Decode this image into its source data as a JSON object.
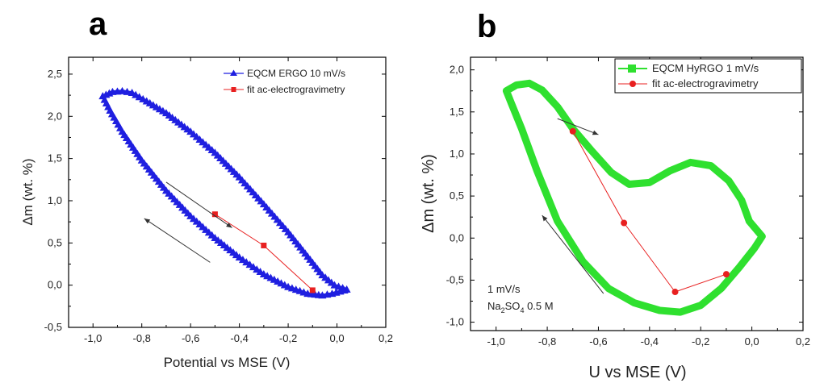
{
  "chart_data": [
    {
      "panel_label": "a",
      "type": "line",
      "xlabel": "Potential vs MSE (V)",
      "ylabel": "Δm (wt. %)",
      "xlim": [
        -1.1,
        0.2
      ],
      "ylim": [
        -0.5,
        2.7
      ],
      "xticks": [
        "-1,0",
        "-0,8",
        "-0,6",
        "-0,4",
        "-0,2",
        "0,0",
        "0,2"
      ],
      "yticks": [
        "-0,5",
        "0,0",
        "0,5",
        "1,0",
        "1,5",
        "2,0",
        "2,5"
      ],
      "legend_position": "top-right",
      "series": [
        {
          "name": "EQCM ERGO 10 mV/s",
          "color": "#1f1fe0",
          "marker": "triangle",
          "closed": true,
          "points": [
            [
              -0.96,
              2.24
            ],
            [
              -0.92,
              2.29
            ],
            [
              -0.88,
              2.3
            ],
            [
              -0.84,
              2.28
            ],
            [
              -0.78,
              2.18
            ],
            [
              -0.7,
              2.04
            ],
            [
              -0.6,
              1.82
            ],
            [
              -0.5,
              1.57
            ],
            [
              -0.4,
              1.28
            ],
            [
              -0.3,
              0.96
            ],
            [
              -0.2,
              0.63
            ],
            [
              -0.12,
              0.34
            ],
            [
              -0.06,
              0.12
            ],
            [
              -0.01,
              0.0
            ],
            [
              0.04,
              -0.05
            ],
            [
              0.03,
              -0.06
            ],
            [
              -0.02,
              -0.1
            ],
            [
              -0.06,
              -0.12
            ],
            [
              -0.12,
              -0.1
            ],
            [
              -0.2,
              -0.02
            ],
            [
              -0.3,
              0.13
            ],
            [
              -0.4,
              0.33
            ],
            [
              -0.5,
              0.56
            ],
            [
              -0.6,
              0.82
            ],
            [
              -0.7,
              1.12
            ],
            [
              -0.8,
              1.48
            ],
            [
              -0.88,
              1.82
            ],
            [
              -0.93,
              2.07
            ],
            [
              -0.96,
              2.24
            ]
          ]
        },
        {
          "name": "fit ac-electrogravimetry",
          "color": "#e82020",
          "marker": "square",
          "closed": false,
          "points": [
            [
              -0.5,
              0.84
            ],
            [
              -0.3,
              0.47
            ],
            [
              -0.1,
              -0.06
            ]
          ]
        }
      ],
      "arrows": [
        {
          "from": [
            -0.7,
            1.22
          ],
          "to": [
            -0.43,
            0.68
          ]
        },
        {
          "from": [
            -0.52,
            0.27
          ],
          "to": [
            -0.79,
            0.79
          ]
        }
      ],
      "annotations": []
    },
    {
      "panel_label": "b",
      "type": "line",
      "xlabel": "U vs MSE (V)",
      "ylabel": "Δm (wt. %)",
      "xlim": [
        -1.1,
        0.2
      ],
      "ylim": [
        -1.1,
        2.15
      ],
      "xticks": [
        "-1,0",
        "-0,8",
        "-0,6",
        "-0,4",
        "-0,2",
        "0,0",
        "0,2"
      ],
      "yticks": [
        "-1,0",
        "-0,5",
        "0,0",
        "0,5",
        "1,0",
        "1,5",
        "2,0"
      ],
      "legend_position": "top-right",
      "series": [
        {
          "name": "EQCM HyRGO 1 mV/s",
          "color": "#2fe02f",
          "marker": "square",
          "closed": true,
          "points": [
            [
              -0.96,
              1.75
            ],
            [
              -0.92,
              1.82
            ],
            [
              -0.87,
              1.84
            ],
            [
              -0.82,
              1.76
            ],
            [
              -0.76,
              1.56
            ],
            [
              -0.7,
              1.3
            ],
            [
              -0.63,
              1.05
            ],
            [
              -0.55,
              0.78
            ],
            [
              -0.48,
              0.64
            ],
            [
              -0.4,
              0.66
            ],
            [
              -0.32,
              0.8
            ],
            [
              -0.24,
              0.9
            ],
            [
              -0.16,
              0.86
            ],
            [
              -0.09,
              0.68
            ],
            [
              -0.04,
              0.45
            ],
            [
              -0.01,
              0.2
            ],
            [
              0.04,
              0.02
            ],
            [
              0.01,
              -0.12
            ],
            [
              -0.05,
              -0.35
            ],
            [
              -0.12,
              -0.6
            ],
            [
              -0.2,
              -0.8
            ],
            [
              -0.28,
              -0.88
            ],
            [
              -0.36,
              -0.86
            ],
            [
              -0.46,
              -0.77
            ],
            [
              -0.56,
              -0.6
            ],
            [
              -0.66,
              -0.28
            ],
            [
              -0.76,
              0.2
            ],
            [
              -0.84,
              0.8
            ],
            [
              -0.9,
              1.3
            ],
            [
              -0.94,
              1.6
            ],
            [
              -0.96,
              1.75
            ]
          ]
        },
        {
          "name": "fit ac-electrogravimetry",
          "color": "#e82020",
          "marker": "circle",
          "closed": false,
          "points": [
            [
              -0.7,
              1.27
            ],
            [
              -0.5,
              0.18
            ],
            [
              -0.3,
              -0.64
            ],
            [
              -0.1,
              -0.43
            ]
          ]
        }
      ],
      "arrows": [
        {
          "from": [
            -0.76,
            1.42
          ],
          "to": [
            -0.6,
            1.23
          ]
        },
        {
          "from": [
            -0.58,
            -0.66
          ],
          "to": [
            -0.82,
            0.27
          ]
        }
      ],
      "annotations": [
        "1 mV/s",
        "Na",
        "2",
        "SO",
        "4",
        " 0.5 M"
      ]
    }
  ]
}
